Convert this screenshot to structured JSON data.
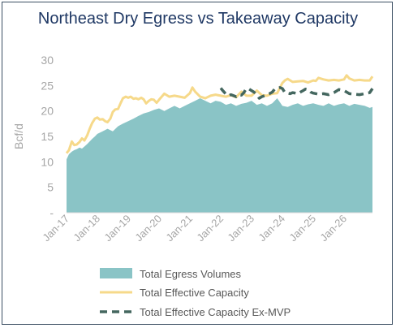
{
  "chart_data": {
    "type": "area",
    "title": "Northeast Dry Egress vs Takeaway Capacity",
    "ylabel": "Bcf/d",
    "xlabel": "",
    "ylim": [
      0,
      30
    ],
    "y_ticks": [
      "-",
      "5",
      "10",
      "15",
      "20",
      "25",
      "30"
    ],
    "x_ticks": [
      "Jan-17",
      "Jan-18",
      "Jan-19",
      "Jan-20",
      "Jan-21",
      "Jan-22",
      "Jan-23",
      "Jan-24",
      "Jan-25",
      "Jan-26"
    ],
    "x_range": [
      2017.0,
      2026.92
    ],
    "grid": false,
    "legend_position": "bottom",
    "colors": {
      "egress": "#8ac4c6",
      "capacity": "#f6d98a",
      "ex_mvp": "#44675f",
      "title": "#1f3864",
      "frame": "#3c4f63"
    },
    "series": [
      {
        "name": "Total Egress Volumes",
        "style": "area",
        "x": [
          2017.0,
          2017.08,
          2017.17,
          2017.25,
          2017.33,
          2017.42,
          2017.5,
          2017.58,
          2017.67,
          2017.75,
          2017.83,
          2017.92,
          2018.0,
          2018.17,
          2018.33,
          2018.5,
          2018.67,
          2018.83,
          2019.0,
          2019.17,
          2019.33,
          2019.5,
          2019.67,
          2019.83,
          2020.0,
          2020.17,
          2020.33,
          2020.5,
          2020.67,
          2020.83,
          2021.0,
          2021.17,
          2021.33,
          2021.5,
          2021.67,
          2021.83,
          2022.0,
          2022.17,
          2022.33,
          2022.5,
          2022.67,
          2022.83,
          2023.0,
          2023.17,
          2023.33,
          2023.5,
          2023.67,
          2023.83,
          2024.0,
          2024.17,
          2024.33,
          2024.5,
          2024.67,
          2024.83,
          2025.0,
          2025.17,
          2025.33,
          2025.5,
          2025.67,
          2025.83,
          2026.0,
          2026.17,
          2026.33,
          2026.5,
          2026.67,
          2026.83,
          2026.92
        ],
        "values": [
          10.5,
          11.5,
          12.0,
          12.3,
          12.5,
          12.8,
          12.6,
          13.0,
          13.5,
          14.0,
          14.5,
          15.0,
          15.5,
          16.0,
          16.5,
          16.0,
          17.0,
          17.5,
          18.0,
          18.5,
          19.0,
          19.5,
          19.8,
          20.2,
          20.5,
          20.0,
          20.5,
          21.0,
          20.5,
          21.0,
          21.5,
          22.0,
          22.5,
          22.0,
          21.5,
          22.0,
          21.8,
          21.2,
          21.5,
          21.0,
          21.4,
          21.6,
          22.0,
          21.2,
          21.5,
          21.0,
          21.5,
          22.5,
          21.0,
          20.8,
          21.2,
          21.5,
          21.0,
          21.3,
          21.5,
          21.2,
          21.0,
          21.5,
          21.0,
          21.3,
          21.5,
          21.0,
          21.4,
          21.2,
          21.0,
          20.6,
          20.8
        ]
      },
      {
        "name": "Total Effective Capacity",
        "style": "line",
        "x": [
          2017.0,
          2017.08,
          2017.17,
          2017.25,
          2017.33,
          2017.42,
          2017.5,
          2017.58,
          2017.67,
          2017.75,
          2017.83,
          2017.92,
          2018.0,
          2018.08,
          2018.17,
          2018.25,
          2018.33,
          2018.42,
          2018.5,
          2018.58,
          2018.67,
          2018.75,
          2018.83,
          2018.92,
          2019.0,
          2019.08,
          2019.17,
          2019.25,
          2019.33,
          2019.42,
          2019.5,
          2019.58,
          2019.67,
          2019.75,
          2019.83,
          2019.92,
          2020.0,
          2020.17,
          2020.33,
          2020.5,
          2020.67,
          2020.83,
          2021.0,
          2021.08,
          2021.17,
          2021.33,
          2021.5,
          2021.67,
          2021.83,
          2022.0,
          2022.17,
          2022.33,
          2022.5,
          2022.67,
          2022.83,
          2023.0,
          2023.17,
          2023.33,
          2023.5,
          2023.67,
          2023.83,
          2024.0,
          2024.08,
          2024.17,
          2024.33,
          2024.5,
          2024.67,
          2024.83,
          2025.0,
          2025.08,
          2025.17,
          2025.33,
          2025.5,
          2025.67,
          2025.83,
          2026.0,
          2026.08,
          2026.17,
          2026.33,
          2026.5,
          2026.67,
          2026.83,
          2026.92
        ],
        "values": [
          11.7,
          12.3,
          14.0,
          13.3,
          13.4,
          13.9,
          14.6,
          14.2,
          15.2,
          16.5,
          17.6,
          18.5,
          18.7,
          18.3,
          18.4,
          18.0,
          17.8,
          18.5,
          19.8,
          20.3,
          20.4,
          21.5,
          22.5,
          22.8,
          22.6,
          22.8,
          22.4,
          22.5,
          22.3,
          22.6,
          22.3,
          21.5,
          22.0,
          22.3,
          22.2,
          21.6,
          22.2,
          23.4,
          22.8,
          23.0,
          22.8,
          22.6,
          23.5,
          24.6,
          23.8,
          22.8,
          22.5,
          23.0,
          23.2,
          23.0,
          22.8,
          23.1,
          22.7,
          23.8,
          23.0,
          23.0,
          24.0,
          23.1,
          23.0,
          23.4,
          23.5,
          25.5,
          26.0,
          26.3,
          25.7,
          25.8,
          25.9,
          25.6,
          26.0,
          25.9,
          26.5,
          26.2,
          26.0,
          26.1,
          26.0,
          26.2,
          27.0,
          26.4,
          26.0,
          26.1,
          26.0,
          26.0,
          26.8
        ]
      },
      {
        "name": "Total Effective Capacity Ex-MVP",
        "style": "dashed",
        "x": [
          2022.0,
          2022.08,
          2022.17,
          2022.25,
          2022.33,
          2022.42,
          2022.5,
          2022.58,
          2022.67,
          2022.75,
          2022.83,
          2022.92,
          2023.0,
          2023.08,
          2023.17,
          2023.25,
          2023.33,
          2023.42,
          2023.5,
          2023.58,
          2023.67,
          2023.75,
          2023.83,
          2023.92,
          2024.0,
          2024.08,
          2024.17,
          2024.25,
          2024.33,
          2024.42,
          2024.5,
          2024.58,
          2024.67,
          2024.75,
          2024.83,
          2024.92,
          2025.0,
          2025.17,
          2025.33,
          2025.5,
          2025.67,
          2025.83,
          2026.0,
          2026.17,
          2026.33,
          2026.5,
          2026.67,
          2026.83,
          2026.92
        ],
        "values": [
          24.5,
          23.9,
          23.3,
          23.0,
          23.2,
          23.0,
          22.8,
          23.2,
          23.1,
          23.6,
          24.4,
          24.3,
          24.0,
          23.7,
          23.1,
          22.5,
          22.8,
          23.0,
          23.2,
          23.4,
          23.7,
          24.3,
          24.5,
          24.6,
          24.4,
          23.6,
          23.5,
          23.4,
          23.6,
          23.5,
          23.4,
          23.7,
          24.0,
          24.3,
          24.2,
          23.7,
          23.5,
          23.3,
          23.4,
          23.2,
          23.6,
          24.2,
          24.0,
          23.4,
          23.3,
          23.2,
          23.4,
          23.6,
          24.4
        ]
      }
    ]
  }
}
